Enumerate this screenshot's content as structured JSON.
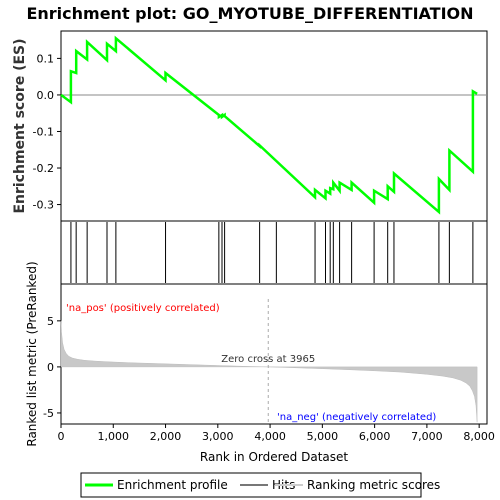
{
  "chart_data": {
    "type": "line",
    "title": "Enrichment plot: GO_MYOTUBE_DIFFERENTIATION",
    "es_panel": {
      "ylabel": "Enrichment score (ES)",
      "ylim": [
        -0.345,
        0.175
      ],
      "yticks": [
        -0.3,
        -0.2,
        -0.1,
        0.0,
        0.1
      ],
      "ytick_labels": [
        "-0.3",
        "-0.2",
        "-0.1",
        "0.0",
        "0.1"
      ],
      "series": [
        {
          "name": "Enrichment profile",
          "color": "#00ff00",
          "x": [
            0,
            190,
            190,
            290,
            290,
            500,
            500,
            880,
            880,
            1050,
            1050,
            2000,
            2000,
            3020,
            3020,
            3080,
            3080,
            3130,
            3130,
            3800,
            3800,
            4860,
            4860,
            5060,
            5060,
            5150,
            5150,
            5210,
            5210,
            5330,
            5330,
            5560,
            5560,
            5990,
            5990,
            6250,
            6250,
            6370,
            6370,
            7230,
            7230,
            7430,
            7430,
            7880,
            7880,
            7960
          ],
          "y": [
            0.0,
            -0.02,
            0.065,
            0.06,
            0.12,
            0.097,
            0.145,
            0.095,
            0.14,
            0.12,
            0.155,
            0.04,
            0.06,
            -0.055,
            -0.06,
            -0.055,
            -0.06,
            -0.055,
            -0.058,
            -0.14,
            -0.138,
            -0.28,
            -0.26,
            -0.283,
            -0.262,
            -0.27,
            -0.255,
            -0.258,
            -0.24,
            -0.262,
            -0.24,
            -0.26,
            -0.24,
            -0.295,
            -0.262,
            -0.285,
            -0.25,
            -0.265,
            -0.215,
            -0.32,
            -0.23,
            -0.26,
            -0.152,
            -0.21,
            0.01,
            0.003
          ]
        }
      ]
    },
    "hits_panel": {
      "label": "Hits",
      "hit_positions": [
        190,
        290,
        500,
        880,
        1050,
        2000,
        3020,
        3080,
        3130,
        3800,
        4120,
        4860,
        5060,
        5150,
        5210,
        5330,
        5560,
        5990,
        6250,
        6370,
        7230,
        7430,
        7880
      ]
    },
    "ranking_panel": {
      "ylabel": "Ranked list metric (PreRanked)",
      "xlabel": "Rank in Ordered Dataset",
      "xlim": [
        0,
        8150
      ],
      "xticks": [
        0,
        1000,
        2000,
        3000,
        4000,
        5000,
        6000,
        7000,
        8000
      ],
      "xtick_labels": [
        "0",
        "1,000",
        "2,000",
        "3,000",
        "4,000",
        "5,000",
        "6,000",
        "7,000",
        "8,000"
      ],
      "ylim": [
        -6.2,
        9.0
      ],
      "yticks": [
        -5,
        0,
        5
      ],
      "ytick_labels": [
        "-5",
        "0",
        "5"
      ],
      "total_genes": 7960,
      "zero_cross": 3965,
      "zero_cross_label": "Zero cross at 3965",
      "pos_label": "'na_pos' (positively correlated)",
      "neg_label": "'na_neg' (negatively correlated)",
      "metric_curve": {
        "rank": [
          0,
          10,
          30,
          60,
          100,
          150,
          220,
          320,
          450,
          650,
          900,
          1300,
          1800,
          2400,
          3000,
          3500,
          3965,
          4500,
          5000,
          5500,
          6000,
          6500,
          7000,
          7300,
          7500,
          7650,
          7750,
          7820,
          7870,
          7910,
          7940,
          7960
        ],
        "value": [
          5.0,
          3.8,
          2.6,
          1.9,
          1.45,
          1.15,
          0.95,
          0.82,
          0.72,
          0.63,
          0.55,
          0.46,
          0.37,
          0.26,
          0.15,
          0.07,
          0.0,
          -0.1,
          -0.2,
          -0.3,
          -0.42,
          -0.57,
          -0.8,
          -1.0,
          -1.2,
          -1.45,
          -1.75,
          -2.1,
          -2.6,
          -3.2,
          -4.2,
          -6.0
        ]
      }
    },
    "colors": {
      "enrichment_line": "#00ff00",
      "hit_line": "#000000",
      "ranking_fill": "#c8c8c8",
      "pos_label": "#ff0000",
      "neg_label": "#0000ff",
      "bar_red": "#ff0000",
      "bar_blue": "#0000ff"
    }
  },
  "legend": {
    "items": [
      {
        "label": "Enrichment profile",
        "color": "#00ff00"
      },
      {
        "label": "Hits",
        "color": "#777777"
      },
      {
        "label": "Ranking metric scores",
        "color": "#cccccc"
      }
    ]
  }
}
